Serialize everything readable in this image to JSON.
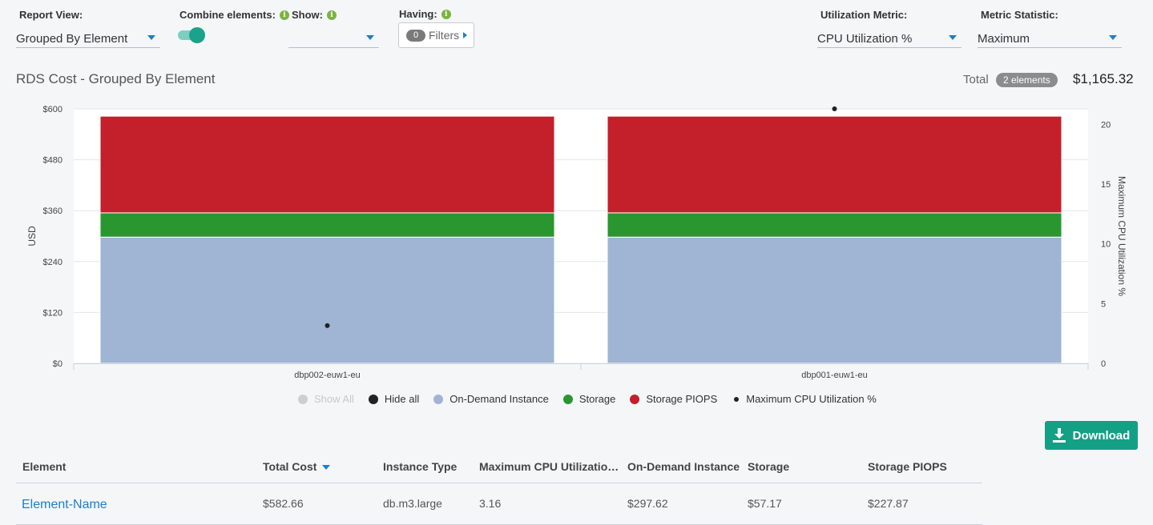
{
  "controls": {
    "report_view": {
      "label": "Report View:",
      "value": "Grouped By Element"
    },
    "combine": {
      "label": "Combine elements:",
      "enabled": true
    },
    "show": {
      "label": "Show:",
      "value": ""
    },
    "having": {
      "label": "Having:",
      "filter_count": "0",
      "filters_label": "Filters"
    },
    "utilization_metric": {
      "label": "Utilization Metric:",
      "value": "CPU Utilization %"
    },
    "metric_statistic": {
      "label": "Metric Statistic:",
      "value": "Maximum"
    }
  },
  "report": {
    "title": "RDS Cost - Grouped By Element",
    "total_label": "Total",
    "elements_badge": "2 elements",
    "total_value": "$1,165.32"
  },
  "chart_data": {
    "type": "bar",
    "stacked": true,
    "categories": [
      "dbp002-euw1-eu",
      "dbp001-euw1-eu"
    ],
    "series": [
      {
        "name": "On-Demand Instance",
        "values": [
          297.62,
          297.62
        ],
        "color": "#a0b4d4"
      },
      {
        "name": "Storage",
        "values": [
          57.17,
          57.17
        ],
        "color": "#2a9630"
      },
      {
        "name": "Storage PIOPS",
        "values": [
          227.87,
          227.87
        ],
        "color": "#c3202b"
      }
    ],
    "overlay_series": {
      "name": "Maximum CPU Utilization %",
      "values": [
        3.16,
        21.3
      ],
      "color": "#222222",
      "axis": "right"
    },
    "ylabel": "USD",
    "ylim": [
      0,
      600
    ],
    "yticks": [
      "$0",
      "$120",
      "$240",
      "$360",
      "$480",
      "$600"
    ],
    "y2label": "Maximum CPU Utilization %",
    "y2lim": [
      0,
      21.3
    ],
    "y2ticks": [
      "0",
      "5",
      "10",
      "15",
      "20"
    ],
    "grid": true
  },
  "legend": {
    "show_all": "Show All",
    "hide_all": "Hide all",
    "items": [
      {
        "label": "On-Demand Instance",
        "color": "#a0b4d4"
      },
      {
        "label": "Storage",
        "color": "#2a9630"
      },
      {
        "label": "Storage PIOPS",
        "color": "#c3202b"
      },
      {
        "label": "Maximum CPU Utilization %",
        "color": "#222222"
      }
    ]
  },
  "download_label": "Download",
  "table": {
    "headers": [
      "Element",
      "Total Cost",
      "Instance Type",
      "Maximum CPU Utilizatio…",
      "On-Demand Instance",
      "Storage",
      "Storage PIOPS"
    ],
    "rows": [
      [
        "Element-Name",
        "$582.66",
        "db.m3.large",
        "3.16",
        "$297.62",
        "$57.17",
        "$227.87"
      ]
    ]
  }
}
